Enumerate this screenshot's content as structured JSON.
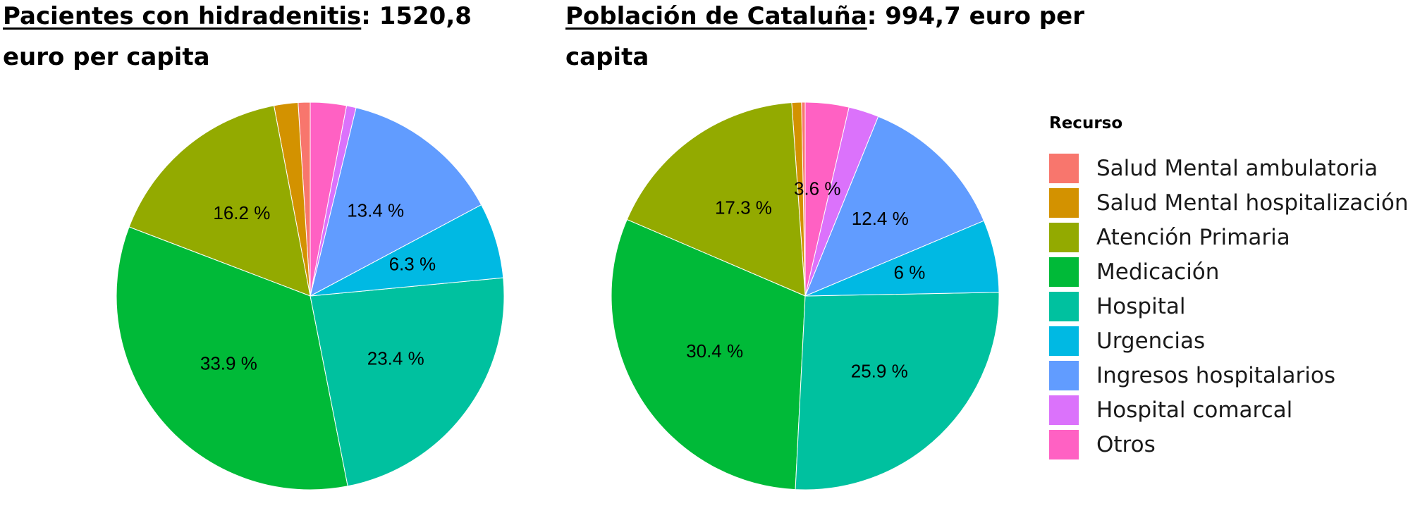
{
  "chart_data": {
    "type": "pie",
    "legend": {
      "title": "Recurso",
      "placement": "right",
      "entries": [
        {
          "name": "Salud Mental ambulatoria",
          "color": "#F8766D"
        },
        {
          "name": "Salud Mental hospitalización",
          "color": "#D39200"
        },
        {
          "name": "Atención Primaria",
          "color": "#93AA00"
        },
        {
          "name": "Medicación",
          "color": "#00BA38"
        },
        {
          "name": "Hospital",
          "color": "#00C19F"
        },
        {
          "name": "Urgencias",
          "color": "#00B9E3"
        },
        {
          "name": "Ingresos hospitalarios",
          "color": "#619CFF"
        },
        {
          "name": "Hospital comarcal",
          "color": "#DB72FB"
        },
        {
          "name": "Otros",
          "color": "#FF61C3"
        }
      ]
    },
    "charts": [
      {
        "title_name": "Pacientes con hidradenitis",
        "title_rest": ": 1520,8 euro per capita",
        "labels": [
          "",
          "",
          "16.2 %",
          "33.9 %",
          "23.4 %",
          "6.3 %",
          "13.4 %",
          "",
          ""
        ],
        "values": [
          1.0,
          2.0,
          16.2,
          33.9,
          23.4,
          6.3,
          13.4,
          0.8,
          3.0
        ]
      },
      {
        "title_name": "Población de Cataluña",
        "title_rest": ": 994,7 euro per capita",
        "labels": [
          "",
          "",
          "17.3 %",
          "30.4 %",
          "25.9 %",
          "6 %",
          "12.4 %",
          "",
          "3.6 %"
        ],
        "values": [
          0.3,
          0.8,
          17.3,
          30.4,
          25.9,
          6.0,
          12.4,
          2.5,
          3.6
        ]
      }
    ]
  }
}
